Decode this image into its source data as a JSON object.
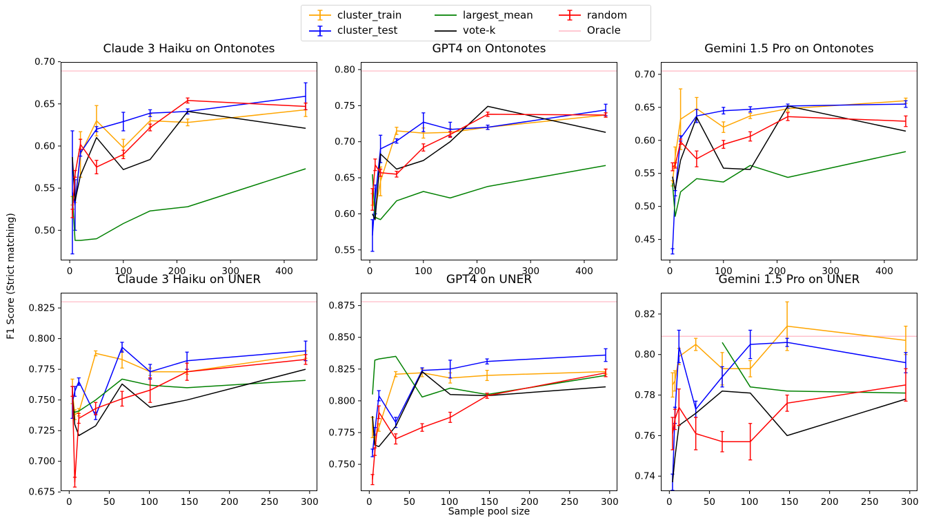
{
  "figure": {
    "ylabel": "F1 Score (Strict matching)",
    "xlabel": "Sample pool size"
  },
  "colors": {
    "cluster_train": "#FFA500",
    "cluster_test": "#0000FF",
    "largest_mean": "#008000",
    "vote_k": "#000000",
    "random": "#FF0000",
    "oracle": "#FFC0CB",
    "axis": "#000000"
  },
  "legend": {
    "entries": [
      {
        "label": "cluster_train",
        "series": "cluster_train",
        "marker": "errorbar"
      },
      {
        "label": "cluster_test",
        "series": "cluster_test",
        "marker": "errorbar"
      },
      {
        "label": "largest_mean",
        "series": "largest_mean",
        "marker": "line"
      },
      {
        "label": "vote-k",
        "series": "vote_k",
        "marker": "line"
      },
      {
        "label": "random",
        "series": "random",
        "marker": "errorbar"
      },
      {
        "label": "Oracle",
        "series": "oracle",
        "marker": "line"
      }
    ]
  },
  "chart_data": [
    {
      "type": "line",
      "title": "Claude 3 Haiku on Ontonotes",
      "x": [
        5,
        10,
        20,
        50,
        100,
        150,
        220,
        440
      ],
      "xticks": [
        0,
        100,
        200,
        300,
        400
      ],
      "yticks": [
        0.5,
        0.55,
        0.6,
        0.65,
        0.7
      ],
      "ytick_decimals": 2,
      "xlim": [
        -16.8,
        461.8
      ],
      "ylim": [
        0.4643,
        0.6997
      ],
      "oracle": 0.689,
      "grid": false,
      "series": [
        {
          "name": "cluster_train",
          "color_key": "cluster_train",
          "values": [
            0.535,
            0.537,
            0.59,
            0.63,
            0.598,
            0.63,
            0.628,
            0.643
          ],
          "err": [
            0.005,
            0.004,
            0.027,
            0.018,
            0.01,
            0.008,
            0.004,
            0.008
          ]
        },
        {
          "name": "cluster_test",
          "color_key": "cluster_test",
          "values": [
            0.545,
            0.53,
            0.592,
            0.62,
            0.629,
            0.639,
            0.641,
            0.659
          ],
          "err": [
            0.073,
            0.03,
            0.004,
            0.003,
            0.011,
            0.004,
            0.003,
            0.016
          ]
        },
        {
          "name": "largest_mean",
          "color_key": "largest_mean",
          "values": [
            0.541,
            0.488,
            0.488,
            0.49,
            0.508,
            0.523,
            0.528,
            0.573
          ]
        },
        {
          "name": "vote-k",
          "color_key": "vote_k",
          "values": [
            0.587,
            0.535,
            0.565,
            0.61,
            0.572,
            0.584,
            0.641,
            0.621
          ]
        },
        {
          "name": "random",
          "color_key": "random",
          "values": [
            0.52,
            0.567,
            0.602,
            0.575,
            0.59,
            0.622,
            0.654,
            0.647
          ],
          "err": [
            0.005,
            0.004,
            0.006,
            0.008,
            0.005,
            0.004,
            0.003,
            0.004
          ]
        }
      ]
    },
    {
      "type": "line",
      "title": "GPT4 on Ontonotes",
      "x": [
        5,
        10,
        20,
        50,
        100,
        150,
        220,
        440
      ],
      "xticks": [
        0,
        100,
        200,
        300,
        400
      ],
      "yticks": [
        0.55,
        0.6,
        0.65,
        0.7,
        0.75,
        0.8
      ],
      "ytick_decimals": 2,
      "xlim": [
        -16.8,
        461.8
      ],
      "ylim": [
        0.5355,
        0.8105
      ],
      "oracle": 0.798,
      "grid": false,
      "series": [
        {
          "name": "cluster_train",
          "color_key": "cluster_train",
          "values": [
            0.62,
            0.605,
            0.645,
            0.715,
            0.712,
            0.713,
            0.72,
            0.737
          ],
          "err": [
            0.008,
            0.01,
            0.02,
            0.005,
            0.007,
            0.005,
            0.003,
            0.003
          ]
        },
        {
          "name": "cluster_test",
          "color_key": "cluster_test",
          "values": [
            0.57,
            0.62,
            0.69,
            0.701,
            0.727,
            0.717,
            0.72,
            0.744
          ],
          "err": [
            0.022,
            0.02,
            0.019,
            0.003,
            0.013,
            0.01,
            0.003,
            0.008
          ]
        },
        {
          "name": "largest_mean",
          "color_key": "largest_mean",
          "values": [
            0.655,
            0.595,
            0.592,
            0.618,
            0.631,
            0.622,
            0.638,
            0.667
          ]
        },
        {
          "name": "vote-k",
          "color_key": "vote_k",
          "values": [
            0.6,
            0.592,
            0.683,
            0.662,
            0.674,
            0.7,
            0.749,
            0.713
          ]
        },
        {
          "name": "random",
          "color_key": "random",
          "values": [
            0.62,
            0.668,
            0.657,
            0.655,
            0.692,
            0.71,
            0.738,
            0.737
          ],
          "err": [
            0.015,
            0.008,
            0.005,
            0.004,
            0.005,
            0.004,
            0.003,
            0.003
          ]
        }
      ]
    },
    {
      "type": "line",
      "title": "Gemini 1.5 Pro on Ontonotes",
      "x": [
        5,
        10,
        20,
        50,
        100,
        150,
        220,
        440
      ],
      "xticks": [
        0,
        100,
        200,
        300,
        400
      ],
      "yticks": [
        0.45,
        0.5,
        0.55,
        0.6,
        0.65,
        0.7
      ],
      "ytick_decimals": 2,
      "xlim": [
        -16.8,
        461.8
      ],
      "ylim": [
        0.4183,
        0.7187
      ],
      "oracle": 0.705,
      "grid": false,
      "series": [
        {
          "name": "cluster_train",
          "color_key": "cluster_train",
          "values": [
            0.535,
            0.575,
            0.632,
            0.648,
            0.62,
            0.637,
            0.648,
            0.66
          ],
          "err": [
            0.004,
            0.015,
            0.046,
            0.017,
            0.008,
            0.004,
            0.004,
            0.004
          ]
        },
        {
          "name": "cluster_test",
          "color_key": "cluster_test",
          "values": [
            0.432,
            0.52,
            0.603,
            0.637,
            0.645,
            0.647,
            0.652,
            0.655
          ],
          "err": [
            0.004,
            0.004,
            0.004,
            0.01,
            0.005,
            0.004,
            0.003,
            0.005
          ]
        },
        {
          "name": "largest_mean",
          "color_key": "largest_mean",
          "values": [
            0.535,
            0.485,
            0.522,
            0.542,
            0.537,
            0.562,
            0.544,
            0.583
          ]
        },
        {
          "name": "vote-k",
          "color_key": "vote_k",
          "values": [
            0.545,
            0.525,
            0.57,
            0.635,
            0.558,
            0.556,
            0.652,
            0.614
          ]
        },
        {
          "name": "random",
          "color_key": "random",
          "values": [
            0.56,
            0.562,
            0.598,
            0.572,
            0.594,
            0.606,
            0.636,
            0.629
          ],
          "err": [
            0.006,
            0.004,
            0.004,
            0.012,
            0.006,
            0.007,
            0.006,
            0.008
          ]
        }
      ]
    },
    {
      "type": "line",
      "title": "Claude 3 Haiku on UNER",
      "x": [
        4,
        7,
        12,
        33,
        66,
        101,
        147,
        295
      ],
      "xticks": [
        0,
        50,
        100,
        150,
        200,
        250,
        300
      ],
      "yticks": [
        0.675,
        0.7,
        0.725,
        0.75,
        0.775,
        0.8,
        0.825
      ],
      "ytick_decimals": 3,
      "xlim": [
        -10.6,
        309.6
      ],
      "ylim": [
        0.6757,
        0.8374
      ],
      "oracle": 0.83,
      "grid": false,
      "series": [
        {
          "name": "cluster_train",
          "color_key": "cluster_train",
          "values": [
            0.757,
            0.738,
            0.74,
            0.788,
            0.783,
            0.773,
            0.773,
            0.787
          ],
          "err": [
            0.01,
            0.004,
            0.003,
            0.002,
            0.007,
            0.003,
            0.002,
            0.003
          ]
        },
        {
          "name": "cluster_test",
          "color_key": "cluster_test",
          "values": [
            0.748,
            0.757,
            0.765,
            0.737,
            0.793,
            0.773,
            0.782,
            0.79
          ],
          "err": [
            0.013,
            0.004,
            0.003,
            0.003,
            0.004,
            0.006,
            0.007,
            0.008
          ]
        },
        {
          "name": "largest_mean",
          "color_key": "largest_mean",
          "values": [
            0.742,
            0.74,
            0.741,
            0.75,
            0.767,
            0.762,
            0.76,
            0.766
          ]
        },
        {
          "name": "vote-k",
          "color_key": "vote_k",
          "values": [
            0.755,
            0.73,
            0.721,
            0.729,
            0.763,
            0.744,
            0.75,
            0.775
          ]
        },
        {
          "name": "random",
          "color_key": "random",
          "values": [
            0.757,
            0.683,
            0.735,
            0.743,
            0.751,
            0.758,
            0.773,
            0.783
          ],
          "err": [
            0.004,
            0.004,
            0.004,
            0.005,
            0.006,
            0.01,
            0.007,
            0.004
          ]
        }
      ]
    },
    {
      "type": "line",
      "title": "GPT4 on UNER",
      "x": [
        4,
        7,
        12,
        33,
        66,
        101,
        147,
        295
      ],
      "xticks": [
        0,
        50,
        100,
        150,
        200,
        250,
        300
      ],
      "yticks": [
        0.75,
        0.775,
        0.8,
        0.825,
        0.85,
        0.875
      ],
      "ytick_decimals": 3,
      "xlim": [
        -10.6,
        309.6
      ],
      "ylim": [
        0.7289,
        0.8851
      ],
      "oracle": 0.878,
      "grid": false,
      "series": [
        {
          "name": "cluster_train",
          "color_key": "cluster_train",
          "values": [
            0.779,
            0.77,
            0.779,
            0.821,
            0.822,
            0.818,
            0.82,
            0.823
          ],
          "err": [
            0.008,
            0.004,
            0.003,
            0.002,
            0.003,
            0.004,
            0.004,
            0.002
          ]
        },
        {
          "name": "cluster_test",
          "color_key": "cluster_test",
          "values": [
            0.759,
            0.776,
            0.804,
            0.783,
            0.824,
            0.825,
            0.831,
            0.836
          ],
          "err": [
            0.003,
            0.003,
            0.004,
            0.004,
            0.002,
            0.007,
            0.002,
            0.005
          ]
        },
        {
          "name": "largest_mean",
          "color_key": "largest_mean",
          "values": [
            0.805,
            0.832,
            0.833,
            0.835,
            0.803,
            0.81,
            0.805,
            0.82
          ]
        },
        {
          "name": "vote-k",
          "color_key": "vote_k",
          "values": [
            0.788,
            0.765,
            0.764,
            0.78,
            0.823,
            0.805,
            0.804,
            0.811
          ]
        },
        {
          "name": "random",
          "color_key": "random",
          "values": [
            0.738,
            0.76,
            0.791,
            0.77,
            0.779,
            0.787,
            0.804,
            0.822
          ],
          "err": [
            0.004,
            0.003,
            0.005,
            0.004,
            0.003,
            0.004,
            0.002,
            0.003
          ]
        }
      ]
    },
    {
      "type": "line",
      "title": "Gemini 1.5 Pro on UNER",
      "x": [
        4,
        7,
        12,
        33,
        66,
        101,
        147,
        295
      ],
      "xticks": [
        0,
        50,
        100,
        150,
        200,
        250,
        300
      ],
      "yticks": [
        0.74,
        0.76,
        0.78,
        0.8,
        0.82
      ],
      "ytick_decimals": 2,
      "xlim": [
        -10.6,
        309.6
      ],
      "ylim": [
        0.7326,
        0.8305
      ],
      "oracle": 0.809,
      "grid": false,
      "series": [
        {
          "name": "cluster_train",
          "color_key": "cluster_train",
          "values": [
            0.785,
            0.787,
            0.799,
            0.805,
            0.793,
            0.793,
            0.814,
            0.807
          ],
          "err": [
            0.006,
            0.005,
            0.004,
            0.003,
            0.008,
            0.004,
            0.012,
            0.007
          ]
        },
        {
          "name": "cluster_test",
          "color_key": "cluster_test",
          "values": [
            0.737,
            0.77,
            0.804,
            0.773,
            0.789,
            0.805,
            0.806,
            0.796
          ],
          "err": [
            0.004,
            0.004,
            0.008,
            0.004,
            0.005,
            0.007,
            0.002,
            0.005
          ]
        },
        {
          "name": "largest_mean",
          "color_key": "largest_mean",
          "values": [
            null,
            null,
            null,
            null,
            0.806,
            0.784,
            0.782,
            0.781
          ]
        },
        {
          "name": "vote-k",
          "color_key": "vote_k",
          "values": [
            0.737,
            0.749,
            0.765,
            0.771,
            0.782,
            0.781,
            0.76,
            0.778
          ]
        },
        {
          "name": "random",
          "color_key": "random",
          "values": [
            0.761,
            0.768,
            0.774,
            0.761,
            0.757,
            0.757,
            0.776,
            0.785
          ],
          "err": [
            0.008,
            0.005,
            0.009,
            0.008,
            0.005,
            0.009,
            0.004,
            0.008
          ]
        }
      ]
    }
  ]
}
